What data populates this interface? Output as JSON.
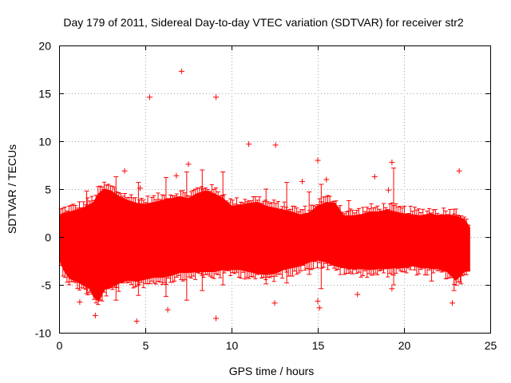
{
  "chart_data": {
    "type": "scatter",
    "title": "Day 179 of 2011, Sidereal Day-to-day VTEC variation (SDTVAR) for receiver str2",
    "xlabel": "GPS time / hours",
    "ylabel": "SDTVAR / TECUs",
    "xlim": [
      0,
      25
    ],
    "ylim": [
      -10,
      20
    ],
    "xticks": [
      "0",
      "5",
      "10",
      "15",
      "20",
      "25"
    ],
    "yticks": [
      "-10",
      "-5",
      "0",
      "5",
      "10",
      "15",
      "20"
    ],
    "grid": true,
    "series_color": "#ff0000",
    "marker": "plus",
    "band_envelope": {
      "x": [
        0.05,
        0.3,
        0.6,
        1.0,
        1.4,
        1.8,
        2.0,
        2.3,
        2.6,
        3.0,
        3.5,
        4.0,
        4.5,
        5.0,
        5.5,
        6.0,
        6.5,
        7.0,
        7.5,
        8.0,
        8.5,
        9.0,
        9.5,
        10.0,
        10.5,
        11.0,
        11.5,
        12.0,
        12.5,
        13.0,
        13.5,
        14.0,
        14.5,
        15.0,
        15.5,
        16.0,
        16.5,
        17.0,
        17.5,
        18.0,
        18.5,
        19.0,
        19.5,
        20.0,
        20.5,
        21.0,
        21.5,
        22.0,
        22.5,
        23.0,
        23.5,
        23.8
      ],
      "upper": [
        2.3,
        2.5,
        2.6,
        2.8,
        3.0,
        3.4,
        3.6,
        4.5,
        5.0,
        4.8,
        4.2,
        3.8,
        3.5,
        3.4,
        3.6,
        3.8,
        4.0,
        4.2,
        4.0,
        4.5,
        4.8,
        4.5,
        4.0,
        3.2,
        3.3,
        3.5,
        3.6,
        3.2,
        3.0,
        2.8,
        2.6,
        2.3,
        2.5,
        3.2,
        3.6,
        3.5,
        2.2,
        2.2,
        2.3,
        2.6,
        2.6,
        2.8,
        2.6,
        2.4,
        2.3,
        2.2,
        2.4,
        2.2,
        2.3,
        2.2,
        1.8,
        1.0
      ],
      "lower": [
        -2.5,
        -3.5,
        -4.3,
        -4.6,
        -5.0,
        -5.4,
        -6.2,
        -6.7,
        -5.5,
        -5.2,
        -4.8,
        -4.5,
        -4.6,
        -4.4,
        -4.2,
        -4.2,
        -4.0,
        -3.7,
        -3.7,
        -3.6,
        -3.6,
        -3.6,
        -3.4,
        -3.4,
        -3.4,
        -3.6,
        -3.8,
        -3.9,
        -3.8,
        -3.4,
        -3.2,
        -3.0,
        -2.6,
        -2.4,
        -2.6,
        -3.0,
        -3.2,
        -3.3,
        -3.3,
        -3.4,
        -3.3,
        -3.3,
        -3.2,
        -3.2,
        -3.0,
        -3.2,
        -3.2,
        -3.3,
        -3.6,
        -4.5,
        -3.6,
        -3.5
      ]
    },
    "outliers": {
      "x": [
        5.25,
        7.1,
        9.1,
        11.0,
        12.55,
        15.0,
        19.3,
        23.2,
        3.8,
        4.7,
        6.8,
        7.5,
        14.1,
        15.5,
        18.3,
        19.1,
        1.2,
        2.1,
        4.5,
        6.3,
        9.1,
        12.5,
        15.0,
        15.1,
        17.3,
        19.3,
        22.8
      ],
      "y": [
        14.6,
        17.3,
        14.6,
        9.7,
        9.6,
        8.0,
        7.8,
        6.9,
        6.9,
        5.1,
        6.4,
        7.6,
        5.8,
        6.0,
        6.3,
        4.9,
        -6.8,
        -8.2,
        -8.8,
        -7.6,
        -8.5,
        -6.9,
        -6.7,
        -7.4,
        -6.0,
        -5.4,
        -6.9
      ]
    },
    "spikes": {
      "x": [
        1.6,
        3.3,
        4.6,
        6.2,
        7.4,
        8.3,
        9.5,
        12.0,
        13.2,
        14.5,
        15.2,
        16.8,
        19.4,
        21.6,
        22.9,
        23.3
      ],
      "top": [
        4.8,
        6.3,
        5.7,
        6.2,
        6.8,
        7.0,
        6.8,
        5.0,
        5.7,
        4.7,
        5.5,
        3.8,
        7.2,
        1.6,
        2.9,
        2.2
      ],
      "bottom": [
        -5.9,
        -6.6,
        -6.1,
        -6.2,
        -6.6,
        -5.6,
        -5.0,
        -4.9,
        -4.8,
        -3.9,
        -5.4,
        -3.8,
        -5.0,
        -4.6,
        -5.6,
        -4.9
      ]
    }
  }
}
